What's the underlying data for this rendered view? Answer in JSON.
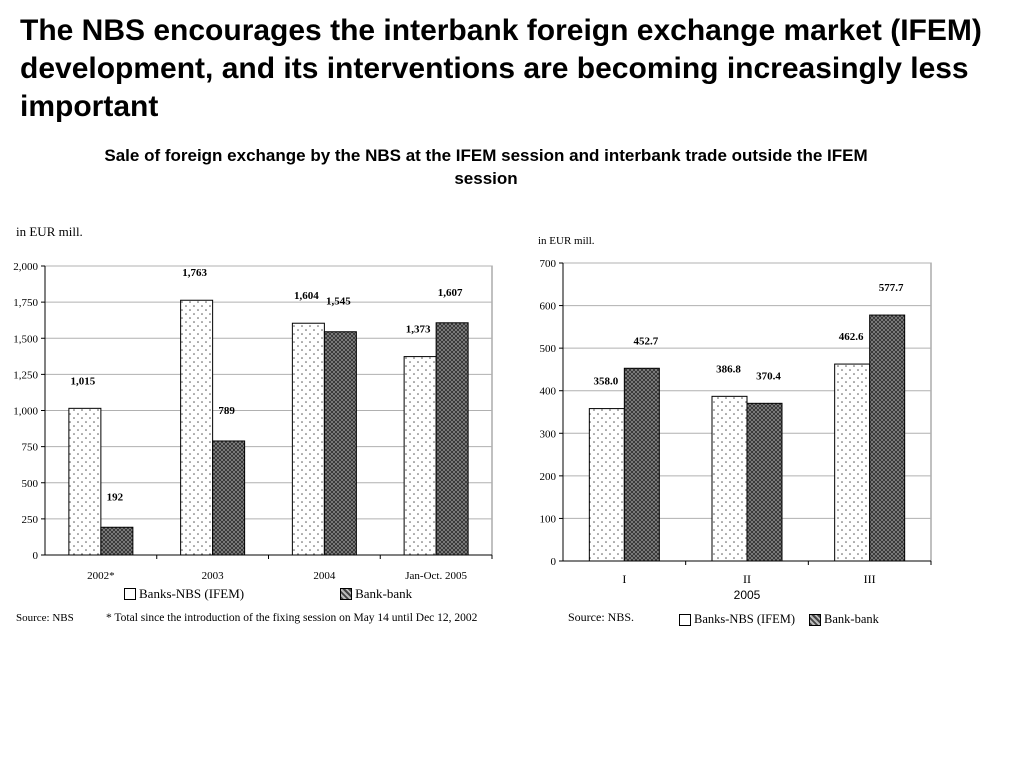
{
  "slide": {
    "title": "The NBS encourages the interbank foreign exchange market (IFEM) development, and its interventions are becoming increasingly less important",
    "subtitle": "Sale of foreign exchange by the NBS at the IFEM session and interbank trade outside the IFEM session"
  },
  "left": {
    "unit": "in EUR mill.",
    "source": "Source: NBS",
    "footnote": "* Total since the introduction of the fixing session on May 14 until Dec 12, 2002",
    "legend": [
      "Banks-NBS (IFEM)",
      "Bank-bank"
    ]
  },
  "right": {
    "unit": "in EUR mill.",
    "source": "Source: NBS.",
    "legend": [
      "Banks-NBS (IFEM)",
      "Bank-bank"
    ]
  },
  "colors": {
    "series_a_fill": "#ffffff",
    "series_b_fill": "#777777",
    "grid": "#b0b0b0"
  },
  "chart_data": [
    {
      "type": "bar",
      "title": "",
      "xlabel": "",
      "ylabel": "",
      "categories": [
        "2002*",
        "2003",
        "2004",
        "Jan-Oct. 2005"
      ],
      "series": [
        {
          "name": "Banks-NBS (IFEM)",
          "values": [
            1015,
            1763,
            1604,
            1373
          ],
          "labels": [
            "1,015",
            "1,763",
            "1,604",
            "1,373"
          ]
        },
        {
          "name": "Bank-bank",
          "values": [
            192,
            789,
            1545,
            1607
          ],
          "labels": [
            "192",
            "789",
            "1,545",
            "1,607"
          ]
        }
      ],
      "ylim": [
        0,
        2000
      ],
      "yticks": [
        0,
        250,
        500,
        750,
        1000,
        1250,
        1500,
        1750,
        2000
      ],
      "ytick_labels": [
        "0",
        "250",
        "500",
        "750",
        "1,000",
        "1,250",
        "1,500",
        "1,750",
        "2,000"
      ],
      "grid": true,
      "legend_position": "bottom"
    },
    {
      "type": "bar",
      "title": "",
      "xlabel": "2005",
      "ylabel": "",
      "categories": [
        "I",
        "II",
        "III"
      ],
      "series": [
        {
          "name": "Banks-NBS (IFEM)",
          "values": [
            358.0,
            386.8,
            462.6
          ],
          "labels": [
            "358.0",
            "386.8",
            "462.6"
          ]
        },
        {
          "name": "Bank-bank",
          "values": [
            452.7,
            370.4,
            577.7
          ],
          "labels": [
            "452.7",
            "370.4",
            "577.7"
          ]
        }
      ],
      "ylim": [
        0,
        700
      ],
      "yticks": [
        0,
        100,
        200,
        300,
        400,
        500,
        600,
        700
      ],
      "ytick_labels": [
        "0",
        "100",
        "200",
        "300",
        "400",
        "500",
        "600",
        "700"
      ],
      "grid": true,
      "legend_position": "bottom"
    }
  ]
}
